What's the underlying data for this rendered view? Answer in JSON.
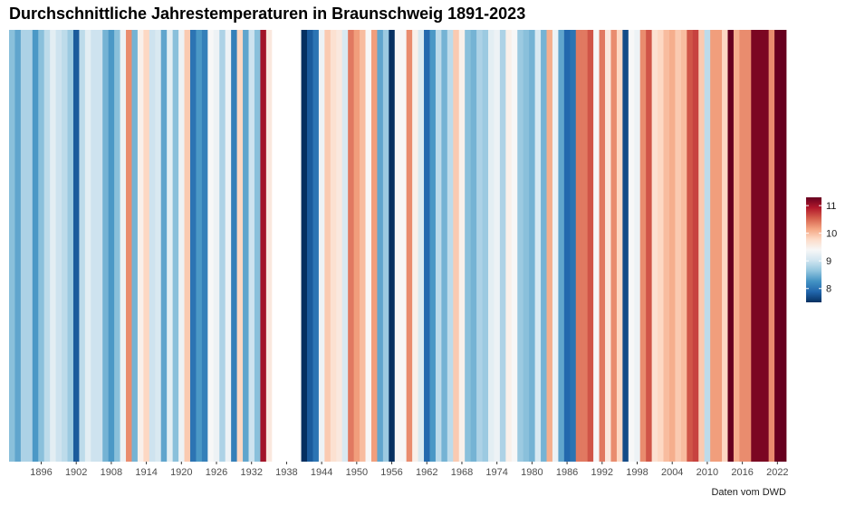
{
  "chart_data": {
    "type": "heatmap",
    "title": "Durchschnittliche Jahrestemperaturen in Braunschweig 1891-2023",
    "caption": "Daten vom DWD",
    "x_range": [
      1891,
      2023
    ],
    "x_ticks": [
      1896,
      1902,
      1908,
      1914,
      1920,
      1926,
      1932,
      1938,
      1944,
      1950,
      1956,
      1962,
      1968,
      1974,
      1980,
      1986,
      1992,
      1998,
      2004,
      2010,
      2016,
      2022
    ],
    "legend": {
      "position": "right",
      "ticks": [
        8,
        9,
        10,
        11
      ],
      "range": [
        7.5,
        11.3
      ]
    },
    "years": [
      1891,
      1892,
      1893,
      1894,
      1895,
      1896,
      1897,
      1898,
      1899,
      1900,
      1901,
      1902,
      1903,
      1904,
      1905,
      1906,
      1907,
      1908,
      1909,
      1910,
      1911,
      1912,
      1913,
      1914,
      1915,
      1916,
      1917,
      1918,
      1919,
      1920,
      1921,
      1922,
      1923,
      1924,
      1925,
      1926,
      1927,
      1928,
      1929,
      1930,
      1931,
      1932,
      1933,
      1934,
      1935,
      1936,
      1937,
      1938,
      1939,
      1940,
      1941,
      1942,
      1943,
      1944,
      1945,
      1946,
      1947,
      1948,
      1949,
      1950,
      1951,
      1952,
      1953,
      1954,
      1955,
      1956,
      1957,
      1958,
      1959,
      1960,
      1961,
      1962,
      1963,
      1964,
      1965,
      1966,
      1967,
      1968,
      1969,
      1970,
      1971,
      1972,
      1973,
      1974,
      1975,
      1976,
      1977,
      1978,
      1979,
      1980,
      1981,
      1982,
      1983,
      1984,
      1985,
      1986,
      1987,
      1988,
      1989,
      1990,
      1991,
      1992,
      1993,
      1994,
      1995,
      1996,
      1997,
      1998,
      1999,
      2000,
      2001,
      2002,
      2003,
      2004,
      2005,
      2006,
      2007,
      2008,
      2009,
      2010,
      2011,
      2012,
      2013,
      2014,
      2015,
      2016,
      2017,
      2018,
      2019,
      2020,
      2021,
      2022,
      2023
    ],
    "values": [
      8.6,
      8.4,
      8.8,
      8.8,
      8.3,
      8.6,
      8.9,
      9.2,
      9.0,
      8.9,
      8.7,
      7.8,
      8.9,
      9.2,
      9.0,
      9.0,
      8.5,
      8.3,
      8.6,
      9.3,
      10.3,
      8.5,
      9.5,
      9.8,
      9.0,
      9.1,
      8.4,
      9.2,
      8.6,
      9.3,
      9.9,
      8.0,
      8.3,
      8.1,
      9.4,
      9.3,
      8.8,
      9.3,
      8.1,
      9.8,
      8.4,
      9.0,
      8.6,
      11.0,
      9.6,
      null,
      null,
      null,
      null,
      null,
      7.5,
      7.8,
      8.0,
      9.3,
      9.9,
      9.7,
      9.6,
      9.1,
      10.4,
      10.2,
      10.0,
      9.4,
      10.2,
      8.4,
      8.7,
      7.5,
      9.4,
      9.4,
      10.3,
      9.5,
      9.1,
      7.9,
      8.3,
      8.9,
      8.5,
      8.9,
      9.9,
      9.5,
      8.6,
      8.5,
      8.8,
      8.7,
      9.2,
      9.3,
      8.8,
      9.5,
      9.4,
      8.7,
      8.6,
      8.5,
      9.1,
      8.5,
      10.1,
      9.3,
      8.4,
      7.9,
      8.0,
      10.4,
      10.4,
      10.6,
      9.4,
      10.4,
      9.6,
      10.3,
      9.8,
      7.7,
      9.4,
      9.3,
      10.3,
      10.6,
      9.7,
      9.8,
      10.0,
      10.1,
      9.9,
      10.0,
      10.6,
      10.7,
      9.9,
      8.9,
      10.2,
      10.2,
      9.8,
      11.3,
      10.1,
      10.3,
      10.3,
      11.2,
      11.2,
      11.2,
      10.3,
      11.3,
      11.3
    ],
    "colors": {
      "scale": [
        "#053061",
        "#2166ac",
        "#4393c3",
        "#92c5de",
        "#d1e5f0",
        "#f7f7f7",
        "#fddbc7",
        "#f4a582",
        "#d6604d",
        "#b2182b",
        "#67001f"
      ],
      "missing": "#ffffff"
    }
  }
}
